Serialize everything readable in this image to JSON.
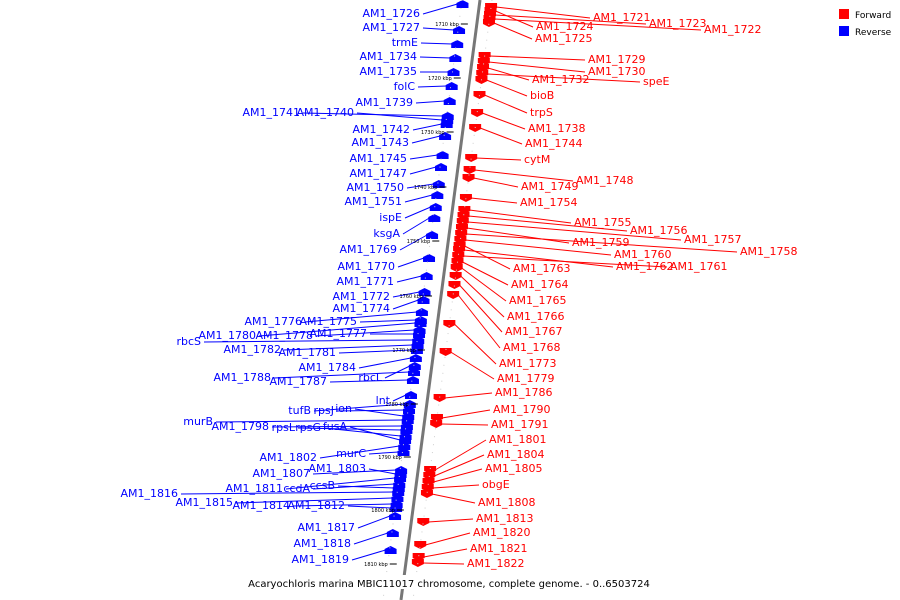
{
  "caption": "Acaryochloris marina MBIC11017 chromosome, complete genome. - 0..6503724",
  "legend": [
    {
      "label": "Forward",
      "color": "#ff0000"
    },
    {
      "label": "Reverse",
      "color": "#0000ff"
    }
  ],
  "colors": {
    "forward": "#ff0000",
    "reverse": "#0000ff",
    "backbone": "#777777"
  },
  "ticks": [
    "1710 kbp",
    "1720 kbp",
    "1730 kbp",
    "1740 kbp",
    "1750 kbp",
    "1760 kbp",
    "1770 kbp",
    "1780 kbp",
    "1790 kbp",
    "1800 kbp",
    "1810 kbp"
  ],
  "reverse_genes": [
    "AM1_1726",
    "AM1_1727",
    "trmE",
    "AM1_1734",
    "AM1_1735",
    "folC",
    "AM1_1739",
    "AM1_1741",
    "AM1_1740",
    "AM1_1742",
    "AM1_1743",
    "AM1_1745",
    "AM1_1747",
    "AM1_1750",
    "AM1_1751",
    "ispE",
    "ksgA",
    "AM1_1769",
    "AM1_1770",
    "AM1_1771",
    "AM1_1772",
    "AM1_1774",
    "AM1_1776",
    "AM1_1775",
    "AM1_1780",
    "AM1_1778",
    "AM1_1777",
    "rbcS",
    "AM1_1782",
    "AM1_1781",
    "AM1_1784",
    "rbcL",
    "AM1_1788",
    "AM1_1787",
    "lnt",
    "tufB",
    "rpsJ",
    "ion",
    "murB",
    "AM1_1798",
    "rpsL",
    "rpsG",
    "fusA",
    "AM1_1802",
    "murC",
    "AM1_1807",
    "AM1_1803",
    "AM1_1811",
    "ccdA",
    "ccsB",
    "AM1_1816",
    "AM1_1815",
    "AM1_1814",
    "AM1_1812",
    "AM1_1817",
    "AM1_1818",
    "AM1_1819"
  ],
  "forward_genes": [
    "AM1_1721",
    "AM1_1724",
    "AM1_1723",
    "AM1_1722",
    "AM1_1725",
    "AM1_1729",
    "AM1_1730",
    "AM1_1732",
    "speE",
    "bioB",
    "trpS",
    "AM1_1738",
    "AM1_1744",
    "cytM",
    "AM1_1748",
    "AM1_1749",
    "AM1_1754",
    "AM1_1755",
    "AM1_1756",
    "AM1_1757",
    "AM1_1759",
    "AM1_1758",
    "AM1_1760",
    "AM1_1763",
    "AM1_1762",
    "AM1_1761",
    "AM1_1764",
    "AM1_1765",
    "AM1_1766",
    "AM1_1767",
    "AM1_1768",
    "AM1_1773",
    "AM1_1779",
    "AM1_1786",
    "AM1_1790",
    "AM1_1791",
    "AM1_1801",
    "AM1_1804",
    "AM1_1805",
    "obgE",
    "AM1_1808",
    "AM1_1813",
    "AM1_1820",
    "AM1_1821",
    "AM1_1822"
  ]
}
